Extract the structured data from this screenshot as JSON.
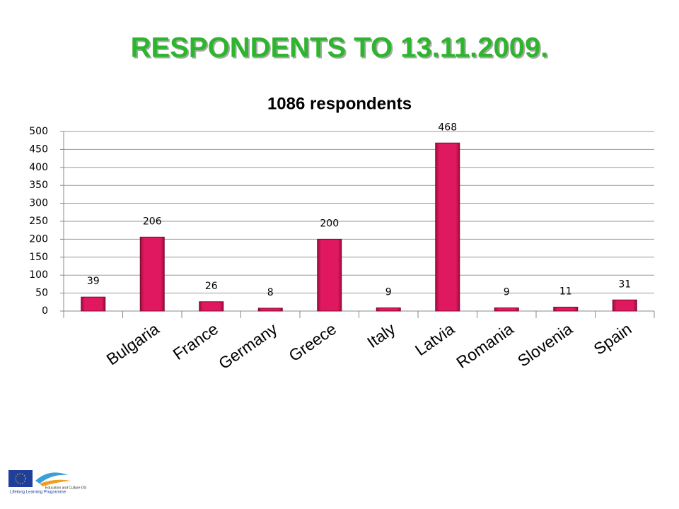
{
  "slide_title": "RESPONDENTS TO 13.11.2009.",
  "footer": {
    "dg": "Education and Culture DG",
    "programme": "Lifelong Learning Programme"
  },
  "chart_data": {
    "type": "bar",
    "title": "1086 respondents",
    "categories": [
      null,
      "Bulgaria",
      "France",
      "Germany",
      "Greece",
      "Italy",
      "Latvia",
      "Romania",
      "Slovenia",
      "Spain"
    ],
    "values": [
      39,
      206,
      26,
      8,
      200,
      9,
      468,
      9,
      11,
      31
    ],
    "color": "#e0185f",
    "ylim": [
      0,
      500
    ],
    "yticks": [
      0,
      50,
      100,
      150,
      200,
      250,
      300,
      350,
      400,
      450,
      500
    ],
    "grid": true
  }
}
